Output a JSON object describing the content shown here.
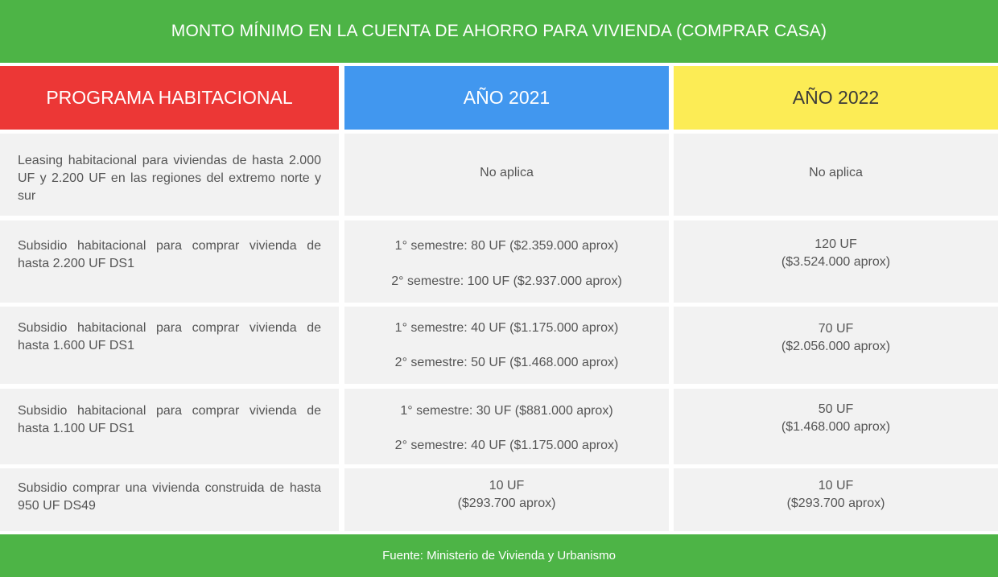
{
  "title": "MONTO MÍNIMO EN LA CUENTA DE AHORRO PARA VIVIENDA (COMPRAR CASA)",
  "headers": {
    "program": "PROGRAMA HABITACIONAL",
    "year2021": "AÑO 2021",
    "year2022": "AÑO 2022"
  },
  "rows": [
    {
      "program": "Leasing habitacional para viviendas de hasta 2.000 UF y 2.200 UF en las regiones del extremo norte y sur",
      "y2021": [
        "No aplica"
      ],
      "y2022": [
        "No aplica"
      ]
    },
    {
      "program": "Subsidio habitacional para comprar vivienda de hasta 2.200 UF DS1",
      "y2021": [
        "1° semestre: 80 UF ($2.359.000 aprox)",
        "2° semestre: 100 UF ($2.937.000 aprox)"
      ],
      "y2022": [
        "120 UF",
        "($3.524.000 aprox)"
      ]
    },
    {
      "program": "Subsidio habitacional para comprar vivienda de hasta 1.600 UF DS1",
      "y2021": [
        "1° semestre: 40 UF ($1.175.000 aprox)",
        "2° semestre: 50 UF ($1.468.000 aprox)"
      ],
      "y2022": [
        "70 UF",
        "($2.056.000 aprox)"
      ]
    },
    {
      "program": "Subsidio habitacional para comprar vivienda de hasta 1.100 UF DS1",
      "y2021": [
        "1° semestre: 30 UF ($881.000 aprox)",
        "2° semestre: 40 UF ($1.175.000 aprox)"
      ],
      "y2022": [
        "50 UF",
        "($1.468.000 aprox)"
      ]
    },
    {
      "program": "Subsidio comprar una vivienda construida de hasta 950 UF DS49",
      "y2021": [
        "10 UF",
        "($293.700 aprox)"
      ],
      "y2022": [
        "10 UF",
        "($293.700 aprox)"
      ]
    }
  ],
  "footer": "Fuente: Ministerio de Vivienda y Urbanismo",
  "colors": {
    "green": "#4db446",
    "red": "#ec3736",
    "blue": "#4197ef",
    "yellow": "#fcec55",
    "cell": "#f2f2f2"
  }
}
